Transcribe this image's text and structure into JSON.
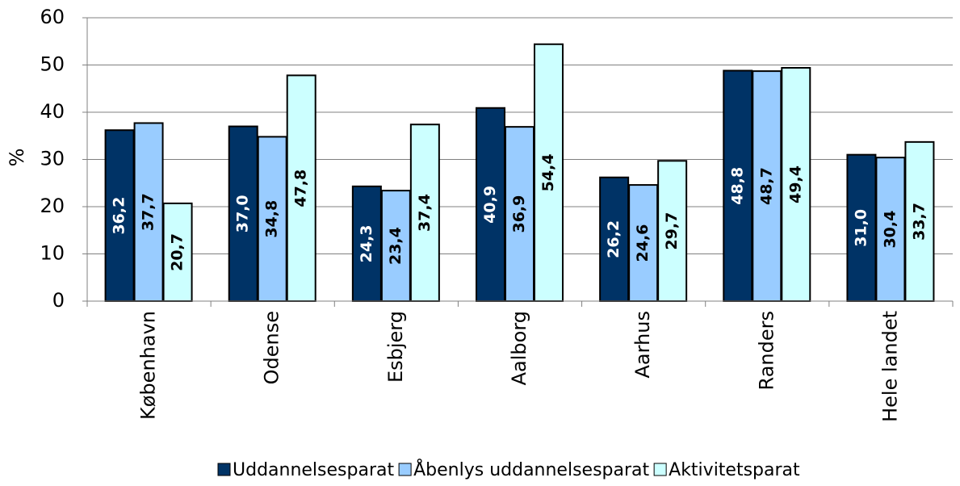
{
  "chart_data": {
    "type": "bar",
    "y_label": "%",
    "categories": [
      "København",
      "Odense",
      "Esbjerg",
      "Aalborg",
      "Aarhus",
      "Randers",
      "Hele landet"
    ],
    "series": [
      {
        "name": "Uddannelsesparat",
        "color": "#003366",
        "values": [
          36.2,
          37.0,
          24.3,
          40.9,
          26.2,
          48.8,
          31.0
        ],
        "value_labels": [
          "36,2",
          "37,0",
          "24,3",
          "40,9",
          "26,2",
          "48,8",
          "31,0"
        ]
      },
      {
        "name": "Åbenlys uddannelsesparat",
        "color": "#99ccff",
        "values": [
          37.7,
          34.8,
          23.4,
          36.9,
          24.6,
          48.7,
          30.4
        ],
        "value_labels": [
          "37,7",
          "34,8",
          "23,4",
          "36,9",
          "24,6",
          "48,7",
          "30,4"
        ]
      },
      {
        "name": "Aktivitetsparat",
        "color": "#ccffff",
        "values": [
          20.7,
          47.8,
          37.4,
          54.4,
          29.7,
          49.4,
          33.7
        ],
        "value_labels": [
          "20,7",
          "47,8",
          "37,4",
          "54,4",
          "29,7",
          "49,4",
          "33,7"
        ]
      }
    ],
    "ylim": [
      0,
      60
    ],
    "yticks": [
      0,
      10,
      20,
      30,
      40,
      50,
      60
    ],
    "grid": true,
    "legend": "bottom"
  }
}
